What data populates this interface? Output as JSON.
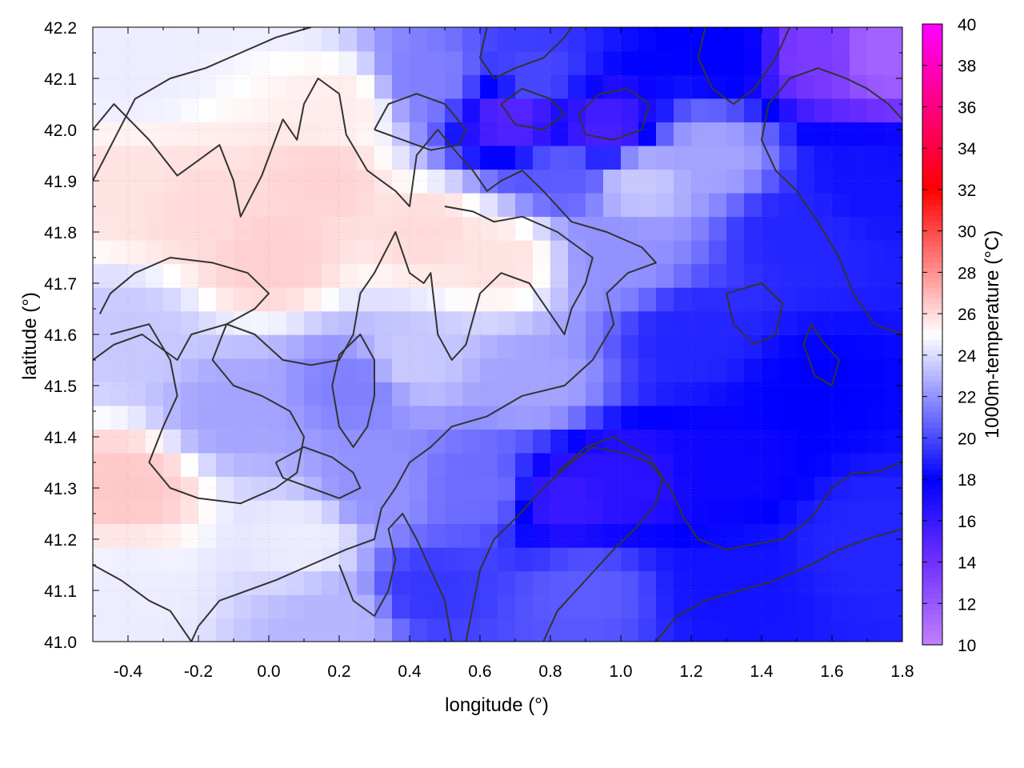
{
  "chart_data": {
    "type": "heatmap",
    "title": "",
    "xlabel": "longitude (°)",
    "ylabel": "latitude (°)",
    "colorbar_label": "1000m-temperature (°C)",
    "xlim": [
      -0.5,
      1.8
    ],
    "ylim": [
      41.0,
      42.2
    ],
    "clim": [
      10,
      40
    ],
    "x_ticks": [
      -0.4,
      -0.2,
      0.0,
      0.2,
      0.4,
      0.6,
      0.8,
      1.0,
      1.2,
      1.4,
      1.6,
      1.8
    ],
    "x_tick_labels": [
      "-0.4",
      "-0.2",
      "0.0",
      "0.2",
      "0.4",
      "0.6",
      "0.8",
      "1.0",
      "1.2",
      "1.4",
      "1.6",
      "1.8"
    ],
    "y_ticks": [
      41.0,
      41.1,
      41.2,
      41.3,
      41.4,
      41.5,
      41.6,
      41.7,
      41.8,
      41.9,
      42.0,
      42.1,
      42.2
    ],
    "y_tick_labels": [
      "41.0",
      "41.1",
      "41.2",
      "41.3",
      "41.4",
      "41.5",
      "41.6",
      "41.7",
      "41.8",
      "41.9",
      "42.0",
      "42.1",
      "42.2"
    ],
    "colorbar_ticks": [
      10,
      12,
      14,
      16,
      18,
      20,
      22,
      24,
      26,
      28,
      30,
      32,
      34,
      36,
      38,
      40
    ],
    "colorbar_tick_labels": [
      "10",
      "12",
      "14",
      "16",
      "18",
      "20",
      "22",
      "24",
      "26",
      "28",
      "30",
      "32",
      "34",
      "36",
      "38",
      "40"
    ],
    "colormap": [
      {
        "value": 10,
        "color": "#c080ff"
      },
      {
        "value": 14,
        "color": "#7030ff"
      },
      {
        "value": 18,
        "color": "#0000ff"
      },
      {
        "value": 25,
        "color": "#ffffff"
      },
      {
        "value": 32,
        "color": "#ff0000"
      },
      {
        "value": 40,
        "color": "#ff00ff"
      }
    ],
    "grid": true,
    "field_samples": [
      {
        "lon": -0.4,
        "lat": 42.1,
        "t": 24.5
      },
      {
        "lon": -0.4,
        "lat": 41.9,
        "t": 25.8
      },
      {
        "lon": -0.4,
        "lat": 41.6,
        "t": 23.5
      },
      {
        "lon": -0.4,
        "lat": 41.3,
        "t": 26.5
      },
      {
        "lon": -0.4,
        "lat": 41.1,
        "t": 24.5
      },
      {
        "lon": -0.2,
        "lat": 41.85,
        "t": 26.0
      },
      {
        "lon": 0.0,
        "lat": 41.75,
        "t": 26.3
      },
      {
        "lon": -0.1,
        "lat": 41.45,
        "t": 22.5
      },
      {
        "lon": 0.1,
        "lat": 41.2,
        "t": 24.5
      },
      {
        "lon": 0.15,
        "lat": 41.9,
        "t": 26.2
      },
      {
        "lon": 0.2,
        "lat": 42.05,
        "t": 25.5
      },
      {
        "lon": 0.45,
        "lat": 41.8,
        "t": 26.0
      },
      {
        "lon": 0.65,
        "lat": 41.75,
        "t": 25.8
      },
      {
        "lon": 0.4,
        "lat": 41.55,
        "t": 23.5
      },
      {
        "lon": 0.25,
        "lat": 41.5,
        "t": 21.5
      },
      {
        "lon": 0.3,
        "lat": 41.3,
        "t": 22.0
      },
      {
        "lon": 0.45,
        "lat": 42.1,
        "t": 21.5
      },
      {
        "lon": 0.75,
        "lat": 42.1,
        "t": 20.0
      },
      {
        "lon": 0.7,
        "lat": 42.03,
        "t": 15.0
      },
      {
        "lon": 0.95,
        "lat": 42.0,
        "t": 15.5
      },
      {
        "lon": 0.85,
        "lat": 41.92,
        "t": 20.5
      },
      {
        "lon": 1.05,
        "lat": 41.9,
        "t": 23.5
      },
      {
        "lon": 1.25,
        "lat": 41.95,
        "t": 22.5
      },
      {
        "lon": 1.0,
        "lat": 41.75,
        "t": 22.0
      },
      {
        "lon": 1.2,
        "lat": 41.6,
        "t": 19.0
      },
      {
        "lon": 0.75,
        "lat": 41.5,
        "t": 22.5
      },
      {
        "lon": 0.6,
        "lat": 41.3,
        "t": 21.0
      },
      {
        "lon": 0.85,
        "lat": 41.28,
        "t": 16.0
      },
      {
        "lon": 1.0,
        "lat": 41.32,
        "t": 16.5
      },
      {
        "lon": 1.3,
        "lat": 41.35,
        "t": 17.5
      },
      {
        "lon": 1.55,
        "lat": 41.5,
        "t": 18.0
      },
      {
        "lon": 1.5,
        "lat": 41.8,
        "t": 19.0
      },
      {
        "lon": 1.7,
        "lat": 41.9,
        "t": 18.5
      },
      {
        "lon": 1.55,
        "lat": 42.15,
        "t": 13.5
      },
      {
        "lon": 1.75,
        "lat": 42.15,
        "t": 11.5
      },
      {
        "lon": 1.3,
        "lat": 42.15,
        "t": 18.0
      },
      {
        "lon": 1.7,
        "lat": 41.2,
        "t": 19.0
      },
      {
        "lon": 1.3,
        "lat": 41.1,
        "t": 18.5
      },
      {
        "lon": 0.45,
        "lat": 41.1,
        "t": 19.5
      },
      {
        "lon": 0.2,
        "lat": 41.05,
        "t": 23.0
      },
      {
        "lon": 0.9,
        "lat": 41.1,
        "t": 20.5
      }
    ],
    "contours": [
      [
        [
          -0.5,
          42.0
        ],
        [
          -0.44,
          42.05
        ],
        [
          -0.34,
          41.98
        ],
        [
          -0.26,
          41.91
        ],
        [
          -0.2,
          41.94
        ],
        [
          -0.14,
          41.97
        ],
        [
          -0.1,
          41.9
        ],
        [
          -0.08,
          41.83
        ],
        [
          -0.02,
          41.91
        ],
        [
          0.04,
          42.02
        ],
        [
          0.08,
          41.98
        ],
        [
          0.1,
          42.05
        ],
        [
          0.14,
          42.1
        ],
        [
          0.2,
          42.07
        ],
        [
          0.22,
          41.99
        ],
        [
          0.28,
          41.92
        ],
        [
          0.36,
          41.88
        ],
        [
          0.4,
          41.85
        ],
        [
          0.42,
          41.95
        ],
        [
          0.48,
          42.0
        ],
        [
          0.54,
          41.95
        ],
        [
          0.58,
          41.92
        ],
        [
          0.62,
          41.88
        ],
        [
          0.66,
          41.9
        ],
        [
          0.72,
          41.92
        ],
        [
          0.78,
          41.88
        ],
        [
          0.86,
          41.82
        ],
        [
          0.96,
          41.8
        ],
        [
          1.06,
          41.77
        ],
        [
          1.1,
          41.74
        ],
        [
          1.02,
          41.72
        ],
        [
          0.96,
          41.68
        ],
        [
          0.98,
          41.62
        ],
        [
          0.92,
          41.55
        ],
        [
          0.84,
          41.5
        ],
        [
          0.72,
          41.48
        ],
        [
          0.62,
          41.44
        ],
        [
          0.52,
          41.42
        ],
        [
          0.46,
          41.38
        ],
        [
          0.4,
          41.35
        ],
        [
          0.36,
          41.3
        ],
        [
          0.32,
          41.26
        ],
        [
          0.3,
          41.2
        ],
        [
          0.22,
          41.18
        ],
        [
          0.12,
          41.15
        ],
        [
          0.02,
          41.12
        ],
        [
          -0.06,
          41.1
        ],
        [
          -0.14,
          41.08
        ],
        [
          -0.2,
          41.03
        ],
        [
          -0.22,
          41.0
        ]
      ],
      [
        [
          -0.5,
          41.55
        ],
        [
          -0.44,
          41.58
        ],
        [
          -0.36,
          41.6
        ],
        [
          -0.26,
          41.55
        ],
        [
          -0.22,
          41.6
        ],
        [
          -0.12,
          41.62
        ],
        [
          -0.04,
          41.6
        ],
        [
          0.04,
          41.55
        ],
        [
          0.12,
          41.54
        ],
        [
          0.2,
          41.55
        ],
        [
          0.24,
          41.6
        ],
        [
          0.26,
          41.68
        ],
        [
          0.3,
          41.72
        ],
        [
          0.36,
          41.8
        ],
        [
          0.4,
          41.72
        ],
        [
          0.44,
          41.7
        ],
        [
          0.46,
          41.72
        ],
        [
          0.48,
          41.6
        ],
        [
          0.52,
          41.55
        ],
        [
          0.56,
          41.58
        ],
        [
          0.6,
          41.68
        ],
        [
          0.66,
          41.72
        ],
        [
          0.74,
          41.7
        ],
        [
          0.8,
          41.64
        ],
        [
          0.84,
          41.6
        ],
        [
          0.86,
          41.65
        ],
        [
          0.9,
          41.7
        ],
        [
          0.92,
          41.75
        ],
        [
          0.82,
          41.8
        ],
        [
          0.72,
          41.83
        ],
        [
          0.64,
          41.82
        ],
        [
          0.58,
          41.84
        ],
        [
          0.5,
          41.85
        ]
      ],
      [
        [
          -0.45,
          41.6
        ],
        [
          -0.34,
          41.62
        ],
        [
          -0.28,
          41.55
        ],
        [
          -0.26,
          41.48
        ],
        [
          -0.3,
          41.42
        ],
        [
          -0.34,
          41.35
        ],
        [
          -0.28,
          41.3
        ],
        [
          -0.2,
          41.28
        ],
        [
          -0.08,
          41.27
        ],
        [
          0.02,
          41.3
        ],
        [
          0.08,
          41.33
        ],
        [
          0.1,
          41.4
        ],
        [
          0.06,
          41.45
        ],
        [
          -0.02,
          41.48
        ],
        [
          -0.1,
          41.5
        ],
        [
          -0.16,
          41.55
        ],
        [
          -0.12,
          41.62
        ],
        [
          -0.04,
          41.65
        ],
        [
          0.0,
          41.68
        ],
        [
          -0.06,
          41.72
        ],
        [
          -0.16,
          41.74
        ],
        [
          -0.28,
          41.75
        ],
        [
          -0.38,
          41.72
        ],
        [
          -0.45,
          41.68
        ],
        [
          -0.48,
          41.64
        ]
      ],
      [
        [
          0.2,
          41.15
        ],
        [
          0.24,
          41.08
        ],
        [
          0.3,
          41.05
        ],
        [
          0.34,
          41.1
        ],
        [
          0.36,
          41.16
        ],
        [
          0.34,
          41.22
        ],
        [
          0.38,
          41.25
        ],
        [
          0.42,
          41.2
        ],
        [
          0.46,
          41.14
        ],
        [
          0.5,
          41.08
        ],
        [
          0.52,
          41.0
        ]
      ],
      [
        [
          0.56,
          41.0
        ],
        [
          0.58,
          41.07
        ],
        [
          0.6,
          41.14
        ],
        [
          0.64,
          41.2
        ],
        [
          0.7,
          41.24
        ],
        [
          0.78,
          41.3
        ],
        [
          0.86,
          41.35
        ],
        [
          0.92,
          41.38
        ],
        [
          1.0,
          41.37
        ],
        [
          1.08,
          41.35
        ],
        [
          1.14,
          41.3
        ],
        [
          1.18,
          41.24
        ],
        [
          1.22,
          41.2
        ],
        [
          1.3,
          41.18
        ],
        [
          1.38,
          41.19
        ],
        [
          1.46,
          41.2
        ],
        [
          1.54,
          41.24
        ],
        [
          1.6,
          41.3
        ],
        [
          1.66,
          41.33
        ],
        [
          1.72,
          41.33
        ],
        [
          1.8,
          41.35
        ]
      ],
      [
        [
          0.78,
          41.0
        ],
        [
          0.82,
          41.06
        ],
        [
          0.9,
          41.12
        ],
        [
          0.98,
          41.18
        ],
        [
          1.04,
          41.22
        ],
        [
          1.1,
          41.27
        ],
        [
          1.12,
          41.32
        ],
        [
          1.08,
          41.36
        ],
        [
          0.98,
          41.4
        ],
        [
          0.9,
          41.38
        ],
        [
          0.82,
          41.33
        ]
      ],
      [
        [
          1.1,
          41.0
        ],
        [
          1.16,
          41.05
        ],
        [
          1.24,
          41.08
        ],
        [
          1.34,
          41.1
        ],
        [
          1.44,
          41.12
        ],
        [
          1.54,
          41.15
        ],
        [
          1.62,
          41.18
        ],
        [
          1.7,
          41.2
        ],
        [
          1.8,
          41.22
        ]
      ],
      [
        [
          1.8,
          41.6
        ],
        [
          1.72,
          41.62
        ],
        [
          1.66,
          41.68
        ],
        [
          1.62,
          41.75
        ],
        [
          1.56,
          41.82
        ],
        [
          1.5,
          41.88
        ],
        [
          1.44,
          41.92
        ],
        [
          1.4,
          41.98
        ],
        [
          1.42,
          42.05
        ],
        [
          1.48,
          42.1
        ],
        [
          1.56,
          42.12
        ],
        [
          1.64,
          42.1
        ],
        [
          1.7,
          42.08
        ],
        [
          1.76,
          42.05
        ],
        [
          1.8,
          42.02
        ]
      ],
      [
        [
          1.24,
          42.2
        ],
        [
          1.22,
          42.14
        ],
        [
          1.26,
          42.08
        ],
        [
          1.32,
          42.05
        ],
        [
          1.38,
          42.08
        ],
        [
          1.44,
          42.14
        ],
        [
          1.48,
          42.2
        ]
      ],
      [
        [
          0.62,
          42.2
        ],
        [
          0.6,
          42.14
        ],
        [
          0.64,
          42.1
        ],
        [
          0.7,
          42.12
        ],
        [
          0.78,
          42.14
        ],
        [
          0.84,
          42.18
        ],
        [
          0.86,
          42.2
        ]
      ],
      [
        [
          0.66,
          42.05
        ],
        [
          0.72,
          42.08
        ],
        [
          0.8,
          42.06
        ],
        [
          0.84,
          42.03
        ],
        [
          0.78,
          42.0
        ],
        [
          0.7,
          42.01
        ],
        [
          0.66,
          42.05
        ]
      ],
      [
        [
          0.88,
          42.03
        ],
        [
          0.94,
          42.07
        ],
        [
          1.02,
          42.08
        ],
        [
          1.08,
          42.05
        ],
        [
          1.06,
          42.0
        ],
        [
          0.98,
          41.98
        ],
        [
          0.9,
          41.99
        ],
        [
          0.88,
          42.03
        ]
      ],
      [
        [
          0.3,
          42.0
        ],
        [
          0.34,
          42.05
        ],
        [
          0.42,
          42.07
        ],
        [
          0.5,
          42.05
        ],
        [
          0.56,
          42.0
        ],
        [
          0.54,
          41.97
        ],
        [
          0.46,
          41.96
        ],
        [
          0.38,
          41.98
        ],
        [
          0.3,
          42.0
        ]
      ],
      [
        [
          0.2,
          41.42
        ],
        [
          0.18,
          41.5
        ],
        [
          0.2,
          41.56
        ],
        [
          0.26,
          41.6
        ],
        [
          0.3,
          41.55
        ],
        [
          0.3,
          41.48
        ],
        [
          0.28,
          41.42
        ],
        [
          0.24,
          41.38
        ],
        [
          0.2,
          41.42
        ]
      ],
      [
        [
          0.02,
          41.35
        ],
        [
          0.1,
          41.38
        ],
        [
          0.18,
          41.36
        ],
        [
          0.24,
          41.33
        ],
        [
          0.26,
          41.3
        ],
        [
          0.2,
          41.28
        ],
        [
          0.12,
          41.3
        ],
        [
          0.04,
          41.32
        ],
        [
          0.02,
          41.35
        ]
      ],
      [
        [
          1.3,
          41.68
        ],
        [
          1.4,
          41.7
        ],
        [
          1.46,
          41.66
        ],
        [
          1.44,
          41.6
        ],
        [
          1.38,
          41.58
        ],
        [
          1.32,
          41.62
        ],
        [
          1.3,
          41.68
        ]
      ],
      [
        [
          1.54,
          41.62
        ],
        [
          1.58,
          41.58
        ],
        [
          1.62,
          41.55
        ],
        [
          1.6,
          41.5
        ],
        [
          1.55,
          41.52
        ],
        [
          1.52,
          41.58
        ],
        [
          1.54,
          41.62
        ]
      ],
      [
        [
          -0.5,
          41.9
        ],
        [
          -0.44,
          41.98
        ],
        [
          -0.38,
          42.06
        ],
        [
          -0.28,
          42.1
        ],
        [
          -0.18,
          42.12
        ],
        [
          -0.08,
          42.15
        ],
        [
          0.02,
          42.18
        ],
        [
          0.12,
          42.2
        ]
      ],
      [
        [
          -0.5,
          41.15
        ],
        [
          -0.42,
          41.12
        ],
        [
          -0.34,
          41.08
        ],
        [
          -0.28,
          41.06
        ],
        [
          -0.24,
          41.02
        ],
        [
          -0.22,
          41.0
        ]
      ]
    ]
  }
}
